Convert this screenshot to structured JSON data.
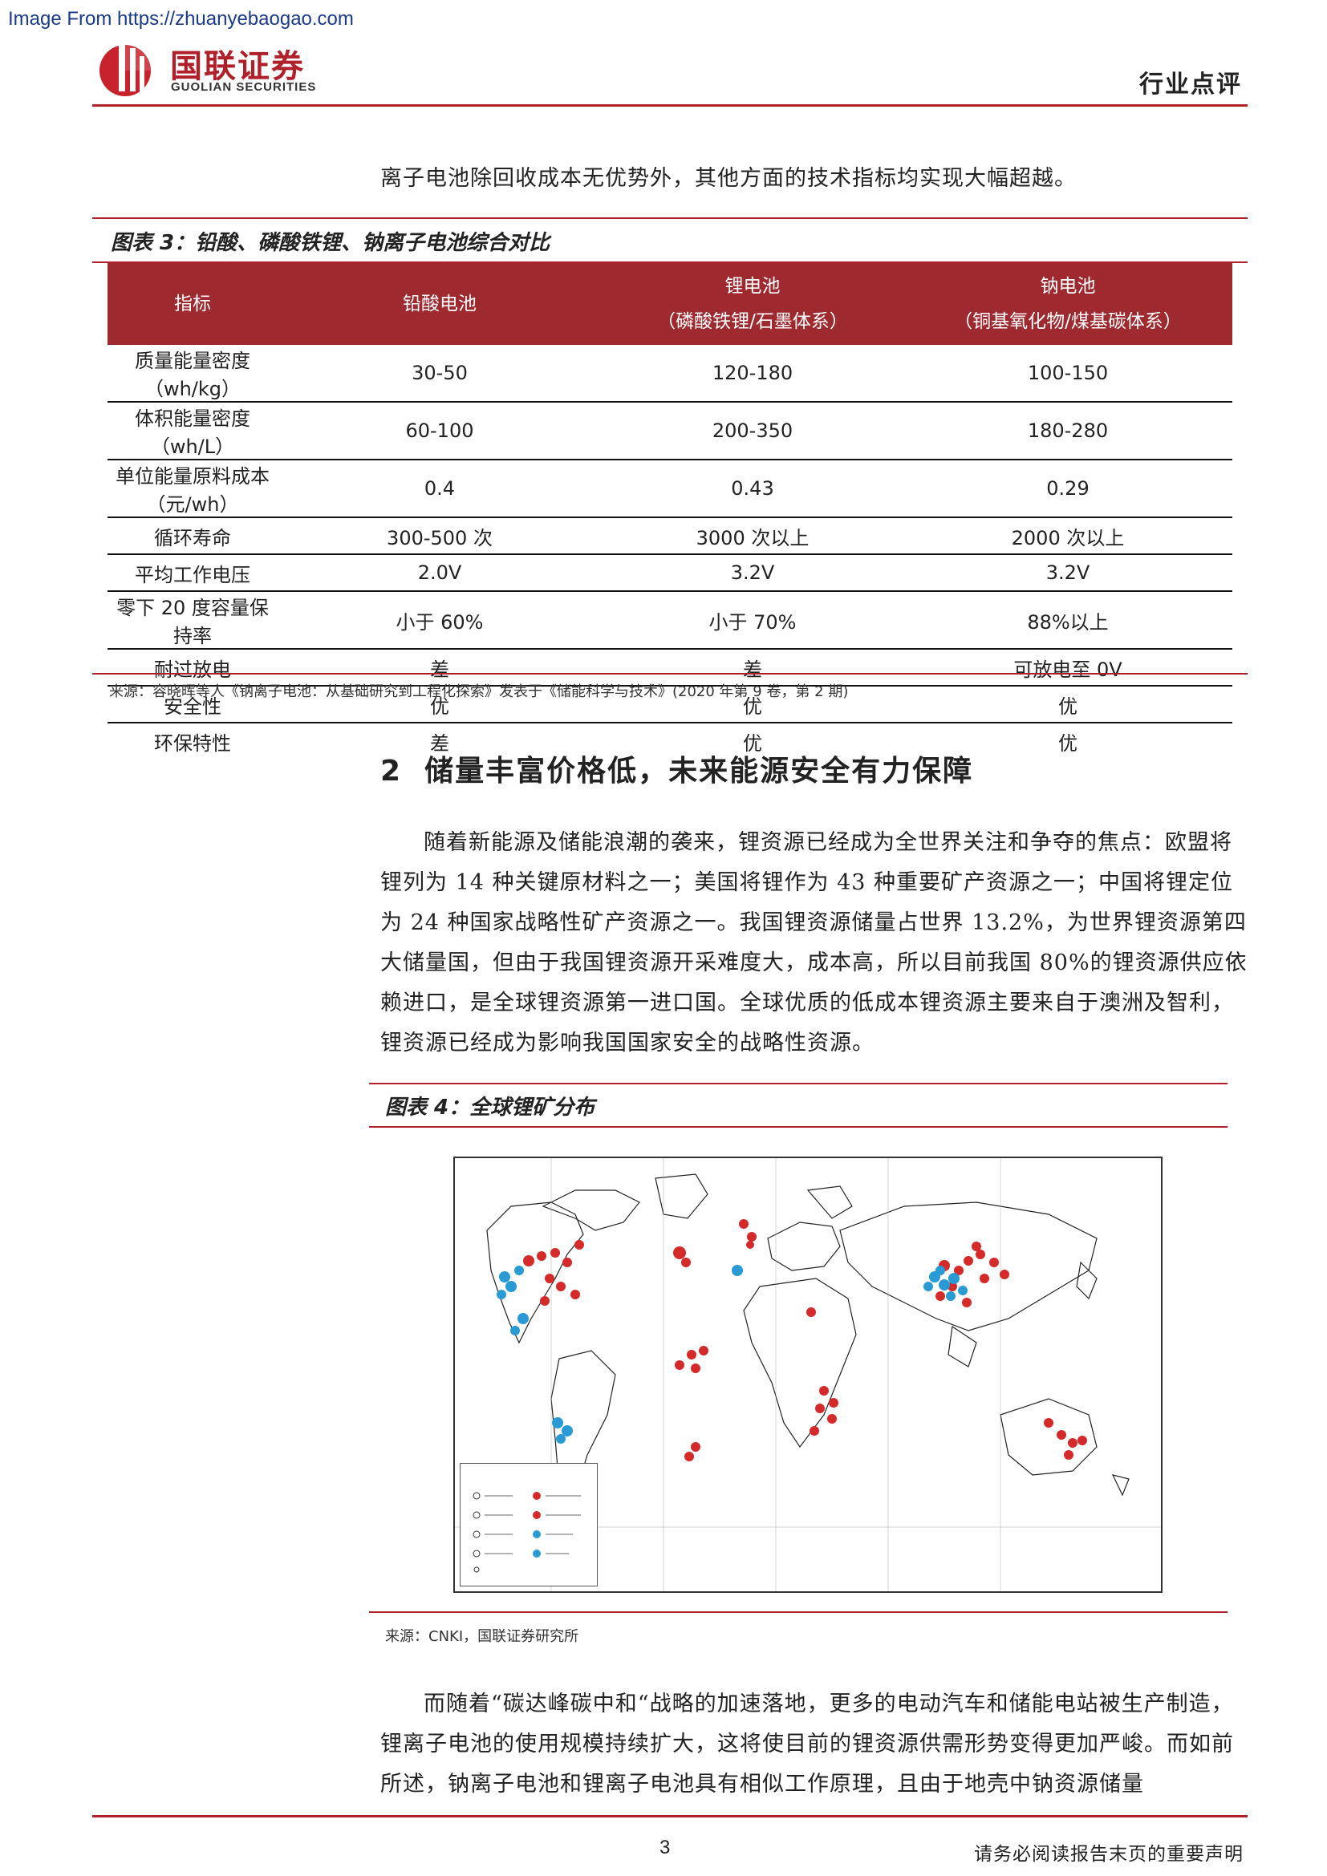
{
  "watermark": "Image From https://zhuanyebaogao.com",
  "header": {
    "logo_cn": "国联证券",
    "logo_en": "GUOLIAN SECURITIES",
    "tag": "行业点评"
  },
  "intro_line": "离子电池除回收成本无优势外，其他方面的技术指标均实现大幅超越。",
  "figure3": {
    "title": "图表 3：铅酸、磷酸铁锂、钠离子电池综合对比",
    "columns": [
      {
        "line1": "指标",
        "line2": ""
      },
      {
        "line1": "铅酸电池",
        "line2": ""
      },
      {
        "line1": "锂电池",
        "line2": "（磷酸铁锂/石墨体系）"
      },
      {
        "line1": "钠电池",
        "line2": "（铜基氧化物/煤基碳体系）"
      }
    ],
    "rows": [
      [
        "质量能量密度（wh/kg）",
        "30-50",
        "120-180",
        "100-150"
      ],
      [
        "体积能量密度（wh/L）",
        "60-100",
        "200-350",
        "180-280"
      ],
      [
        "单位能量原料成本（元/wh）",
        "0.4",
        "0.43",
        "0.29"
      ],
      [
        "循环寿命",
        "300-500 次",
        "3000 次以上",
        "2000 次以上"
      ],
      [
        "平均工作电压",
        "2.0V",
        "3.2V",
        "3.2V"
      ],
      [
        "零下 20 度容量保持率",
        "小于 60%",
        "小于 70%",
        "88%以上"
      ],
      [
        "耐过放电",
        "差",
        "差",
        "可放电至 0V"
      ],
      [
        "安全性",
        "优",
        "优",
        "优"
      ],
      [
        "环保特性",
        "差",
        "优",
        "优"
      ]
    ],
    "source": "来源：容晓晖等人《钠离子电池：从基础研究到工程化探索》发表于《储能科学与技术》(2020 年第 9 卷，第 2 期)"
  },
  "section2": {
    "number": "2",
    "title": "储量丰富价格低，未来能源安全有力保障",
    "para1": "随着新能源及储能浪潮的袭来，锂资源已经成为全世界关注和争夺的焦点：欧盟将锂列为 14 种关键原材料之一；美国将锂作为 43 种重要矿产资源之一；中国将锂定位为 24 种国家战略性矿产资源之一。我国锂资源储量占世界 13.2%，为世界锂资源第四大储量国，但由于我国锂资源开采难度大，成本高，所以目前我国 80%的锂资源供应依赖进口，是全球锂资源第一进口国。全球优质的低成本锂资源主要来自于澳洲及智利，锂资源已经成为影响我国国家安全的战略性资源。"
  },
  "figure4": {
    "title": "图表 4：全球锂矿分布",
    "source": "来源：CNKI，国联证券研究所",
    "colors": {
      "hard_rock": "#d42a2a",
      "brine": "#2a9ad4"
    }
  },
  "para2": "而随着“碳达峰碳中和“战略的加速落地，更多的电动汽车和储能电站被生产制造，锂离子电池的使用规模持续扩大，这将使目前的锂资源供需形势变得更加严峻。而如前所述，钠离子电池和锂离子电池具有相似工作原理，且由于地壳中钠资源储量",
  "footer": {
    "page": "3",
    "disclaimer": "请务必阅读报告末页的重要声明"
  }
}
